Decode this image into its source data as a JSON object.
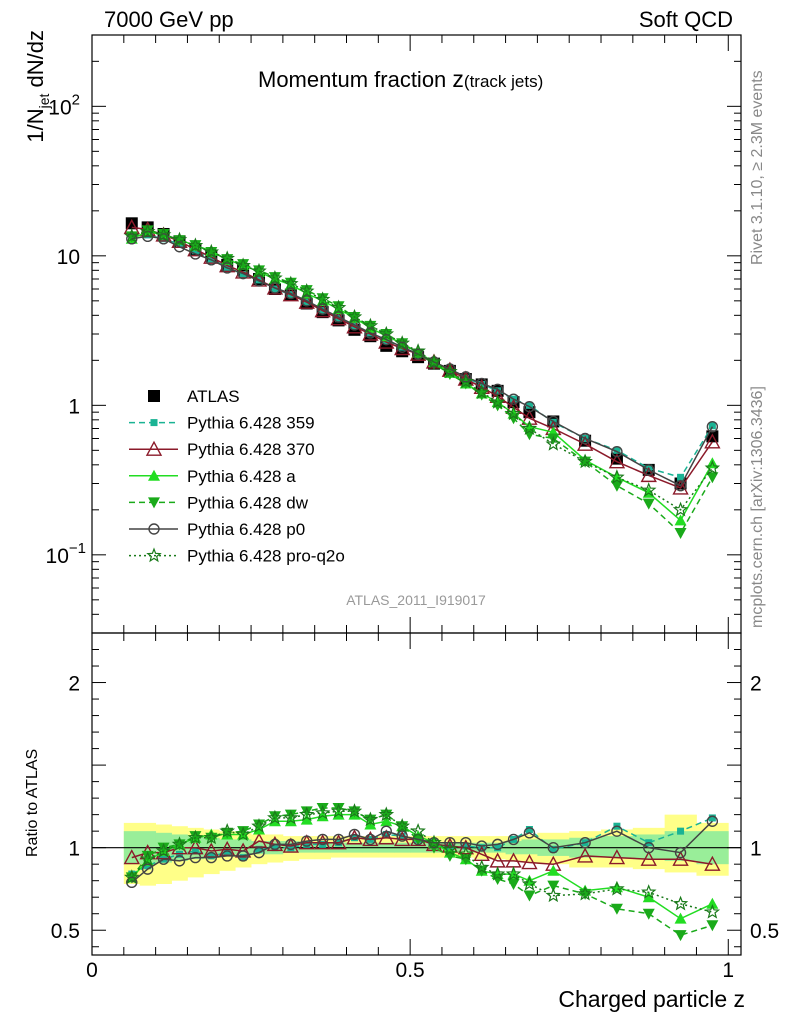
{
  "header": {
    "left_label": "7000 GeV pp",
    "right_label": "Soft QCD"
  },
  "side_labels": {
    "rivet": "Rivet 3.1.10, ≥ 2.3M events",
    "source": "mcplots.cern.ch [arXiv:1306.3436]"
  },
  "chart_data": [
    {
      "type": "line",
      "title_main": "Momentum fraction ",
      "title_var": "z",
      "title_sub": "(track jets)",
      "watermark": "ATLAS_2011_I919017",
      "ylabel_parts": [
        "1/N",
        "jet",
        " dN/dz"
      ],
      "yscale": "log",
      "xlim": [
        0,
        1.02
      ],
      "ylim": [
        0.03,
        300
      ],
      "y_ticks": [
        {
          "v": 0.1,
          "base": "10",
          "exp": "−1"
        },
        {
          "v": 1,
          "base": "1",
          "exp": ""
        },
        {
          "v": 10,
          "base": "10",
          "exp": ""
        },
        {
          "v": 100,
          "base": "10",
          "exp": "2"
        }
      ],
      "x": [
        0.0625,
        0.0875,
        0.1125,
        0.1375,
        0.1625,
        0.1875,
        0.2125,
        0.2375,
        0.2625,
        0.2875,
        0.3125,
        0.3375,
        0.3625,
        0.3875,
        0.4125,
        0.4375,
        0.4625,
        0.4875,
        0.5125,
        0.5375,
        0.5625,
        0.5875,
        0.6125,
        0.6375,
        0.6625,
        0.6875,
        0.725,
        0.775,
        0.825,
        0.875,
        0.925,
        0.975
      ],
      "legend_position": "bottom-left",
      "series": [
        {
          "name": "ATLAS",
          "color": "#000000",
          "marker": "square",
          "line": "none",
          "values": [
            16.5,
            15.5,
            14,
            12.5,
            11,
            10,
            8.7,
            8,
            7,
            6,
            5.5,
            4.8,
            4.2,
            3.7,
            3.2,
            2.9,
            2.5,
            2.3,
            2.1,
            1.9,
            1.7,
            1.5,
            1.38,
            1.25,
            1.05,
            0.9,
            0.78,
            0.58,
            0.44,
            0.37,
            0.3,
            0.62
          ]
        },
        {
          "name": "Pythia 6.428 359",
          "color": "#1ab394",
          "marker": "square-small",
          "line": "dashed",
          "values": [
            13.5,
            13.8,
            13,
            12,
            10.8,
            9.5,
            8.4,
            7.5,
            6.9,
            6,
            5.5,
            4.9,
            4.3,
            3.8,
            3.4,
            3.05,
            2.7,
            2.45,
            2.2,
            1.95,
            1.7,
            1.52,
            1.38,
            1.25,
            1.1,
            1,
            0.77,
            0.6,
            0.5,
            0.38,
            0.33,
            0.73
          ]
        },
        {
          "name": "Pythia 6.428 370",
          "color": "#8b1a2a",
          "marker": "triangle-open",
          "line": "solid",
          "values": [
            15.5,
            15,
            13.8,
            12.5,
            11,
            9.8,
            8.6,
            7.8,
            6.9,
            6.1,
            5.5,
            4.9,
            4.3,
            3.8,
            3.35,
            3,
            2.65,
            2.4,
            2.2,
            1.95,
            1.72,
            1.5,
            1.32,
            1.15,
            0.97,
            0.82,
            0.7,
            0.55,
            0.42,
            0.34,
            0.28,
            0.57
          ]
        },
        {
          "name": "Pythia 6.428 a",
          "color": "#22dd22",
          "marker": "triangle",
          "line": "solid",
          "values": [
            13,
            14.5,
            13.8,
            12.8,
            11.7,
            10.8,
            9.4,
            8.7,
            7.8,
            7,
            6.4,
            5.6,
            5,
            4.4,
            3.85,
            3.3,
            2.9,
            2.6,
            2.25,
            1.95,
            1.65,
            1.4,
            1.2,
            1.05,
            0.88,
            0.72,
            0.66,
            0.43,
            0.33,
            0.26,
            0.17,
            0.41
          ]
        },
        {
          "name": "Pythia 6.428 dw",
          "color": "#1aaa1a",
          "marker": "triangle-down",
          "line": "dashed",
          "values": [
            13.5,
            14.8,
            14,
            12.7,
            11.8,
            10.6,
            9.5,
            8.8,
            8,
            7.2,
            6.6,
            5.9,
            5.2,
            4.6,
            3.9,
            3.4,
            3,
            2.6,
            2.2,
            1.9,
            1.62,
            1.4,
            1.18,
            1.0,
            0.82,
            0.64,
            0.6,
            0.42,
            0.29,
            0.22,
            0.14,
            0.33
          ]
        },
        {
          "name": "Pythia 6.428 p0",
          "color": "#444444",
          "marker": "circle-open",
          "line": "solid",
          "values": [
            13,
            13.5,
            13,
            11.5,
            10.3,
            9.4,
            8.3,
            7.6,
            6.8,
            6.1,
            5.6,
            5,
            4.4,
            3.9,
            3.45,
            3.05,
            2.75,
            2.45,
            2.2,
            1.95,
            1.75,
            1.55,
            1.4,
            1.28,
            1.1,
            0.98,
            0.78,
            0.6,
            0.49,
            0.37,
            0.29,
            0.72
          ]
        },
        {
          "name": "Pythia 6.428 pro-q2o",
          "color": "#1a7a1a",
          "marker": "star",
          "line": "dotted",
          "values": [
            13.5,
            14.5,
            13.8,
            12.8,
            11.7,
            10.6,
            9.6,
            8.6,
            7.9,
            7.1,
            6.5,
            5.8,
            5.1,
            4.5,
            3.9,
            3.4,
            3,
            2.6,
            2.3,
            1.95,
            1.68,
            1.44,
            1.22,
            1.05,
            0.88,
            0.7,
            0.55,
            0.42,
            0.33,
            0.27,
            0.2,
            0.38
          ]
        }
      ]
    },
    {
      "type": "line",
      "ylabel": "Ratio to ATLAS",
      "xlabel": "Charged particle z",
      "xlim": [
        0,
        1.02
      ],
      "ylim": [
        0.35,
        2.3
      ],
      "y_ticks": [
        0.5,
        1,
        2
      ],
      "x_ticks": [
        {
          "v": 0,
          "label": "0"
        },
        {
          "v": 0.5,
          "label": "0.5"
        },
        {
          "v": 1,
          "label": "1"
        }
      ],
      "x": [
        0.0625,
        0.0875,
        0.1125,
        0.1375,
        0.1625,
        0.1875,
        0.2125,
        0.2375,
        0.2625,
        0.2875,
        0.3125,
        0.3375,
        0.3625,
        0.3875,
        0.4125,
        0.4375,
        0.4625,
        0.4875,
        0.5125,
        0.5375,
        0.5625,
        0.5875,
        0.6125,
        0.6375,
        0.6625,
        0.6875,
        0.725,
        0.775,
        0.825,
        0.875,
        0.925,
        0.975
      ],
      "bands": {
        "x_edges": [
          0.05,
          0.075,
          0.1,
          0.125,
          0.15,
          0.175,
          0.2,
          0.225,
          0.25,
          0.275,
          0.3,
          0.325,
          0.35,
          0.375,
          0.4,
          0.425,
          0.45,
          0.475,
          0.5,
          0.525,
          0.55,
          0.575,
          0.6,
          0.625,
          0.65,
          0.675,
          0.7,
          0.75,
          0.8,
          0.85,
          0.9,
          0.95,
          1.0
        ],
        "yellow": {
          "color": "#ffff88",
          "lo": [
            0.78,
            0.77,
            0.78,
            0.8,
            0.82,
            0.84,
            0.86,
            0.88,
            0.9,
            0.91,
            0.92,
            0.93,
            0.93,
            0.94,
            0.94,
            0.94,
            0.94,
            0.94,
            0.94,
            0.94,
            0.94,
            0.94,
            0.93,
            0.93,
            0.92,
            0.91,
            0.9,
            0.88,
            0.88,
            0.87,
            0.85,
            0.83
          ],
          "hi": [
            1.15,
            1.15,
            1.14,
            1.13,
            1.12,
            1.11,
            1.1,
            1.09,
            1.08,
            1.08,
            1.07,
            1.07,
            1.07,
            1.07,
            1.07,
            1.07,
            1.07,
            1.07,
            1.07,
            1.07,
            1.07,
            1.07,
            1.07,
            1.07,
            1.07,
            1.08,
            1.09,
            1.1,
            1.11,
            1.12,
            1.2,
            1.15
          ]
        },
        "green": {
          "color": "#99ee99",
          "lo": [
            0.9,
            0.9,
            0.91,
            0.92,
            0.93,
            0.94,
            0.95,
            0.96,
            0.96,
            0.96,
            0.97,
            0.97,
            0.97,
            0.97,
            0.97,
            0.97,
            0.97,
            0.97,
            0.97,
            0.97,
            0.97,
            0.97,
            0.97,
            0.97,
            0.96,
            0.96,
            0.95,
            0.94,
            0.94,
            0.93,
            0.92,
            0.9
          ],
          "hi": [
            1.1,
            1.1,
            1.09,
            1.08,
            1.07,
            1.06,
            1.05,
            1.05,
            1.04,
            1.04,
            1.04,
            1.03,
            1.03,
            1.03,
            1.03,
            1.03,
            1.03,
            1.03,
            1.03,
            1.03,
            1.03,
            1.03,
            1.03,
            1.03,
            1.04,
            1.05,
            1.05,
            1.06,
            1.07,
            1.08,
            1.1,
            1.1
          ]
        }
      },
      "series": [
        {
          "name": "Pythia 6.428 359",
          "color": "#1ab394",
          "marker": "square-small",
          "line": "dashed",
          "values": [
            0.84,
            0.89,
            0.93,
            0.96,
            0.98,
            0.95,
            0.97,
            0.94,
            0.99,
            1.0,
            1.0,
            1.02,
            1.02,
            1.03,
            1.06,
            1.05,
            1.08,
            1.07,
            1.05,
            1.03,
            1.0,
            1.01,
            1.0,
            1.0,
            1.05,
            1.11,
            0.99,
            1.03,
            1.13,
            1.03,
            1.1,
            1.18
          ]
        },
        {
          "name": "Pythia 6.428 370",
          "color": "#8b1a2a",
          "marker": "triangle-open",
          "line": "solid",
          "values": [
            0.94,
            0.97,
            0.97,
            1.0,
            1.0,
            0.98,
            0.99,
            0.98,
            1.04,
            1.02,
            1.01,
            1.03,
            1.03,
            1.03,
            1.06,
            1.05,
            1.06,
            1.05,
            1.05,
            1.02,
            1.01,
            1.0,
            0.96,
            0.92,
            0.92,
            0.91,
            0.9,
            0.95,
            0.94,
            0.93,
            0.93,
            0.9
          ]
        },
        {
          "name": "Pythia 6.428 a",
          "color": "#22dd22",
          "marker": "triangle",
          "line": "solid",
          "values": [
            0.82,
            0.92,
            0.98,
            1.02,
            1.06,
            1.08,
            1.08,
            1.08,
            1.11,
            1.16,
            1.16,
            1.17,
            1.19,
            1.2,
            1.2,
            1.14,
            1.16,
            1.13,
            1.07,
            1.03,
            0.97,
            0.93,
            0.86,
            0.84,
            0.84,
            0.8,
            0.86,
            0.74,
            0.76,
            0.7,
            0.57,
            0.66
          ]
        },
        {
          "name": "Pythia 6.428 dw",
          "color": "#1aaa1a",
          "marker": "triangle-down",
          "line": "dashed",
          "values": [
            0.82,
            0.95,
            1.0,
            1.02,
            1.07,
            1.06,
            1.09,
            1.1,
            1.14,
            1.19,
            1.2,
            1.22,
            1.24,
            1.24,
            1.22,
            1.17,
            1.2,
            1.13,
            1.05,
            1.0,
            0.95,
            0.93,
            0.86,
            0.81,
            0.78,
            0.71,
            0.77,
            0.72,
            0.63,
            0.6,
            0.47,
            0.53
          ]
        },
        {
          "name": "Pythia 6.428 p0",
          "color": "#444444",
          "marker": "circle-open",
          "line": "solid",
          "values": [
            0.79,
            0.87,
            0.93,
            0.92,
            0.94,
            0.94,
            0.95,
            0.95,
            0.97,
            1.02,
            1.02,
            1.04,
            1.05,
            1.05,
            1.08,
            1.05,
            1.1,
            1.07,
            1.05,
            1.03,
            1.03,
            1.03,
            1.01,
            1.02,
            1.05,
            1.09,
            1.0,
            1.03,
            1.1,
            1.0,
            0.97,
            1.16
          ]
        },
        {
          "name": "Pythia 6.428 pro-q2o",
          "color": "#1a7a1a",
          "marker": "star",
          "line": "dotted",
          "values": [
            0.82,
            0.93,
            0.98,
            1.02,
            1.06,
            1.06,
            1.1,
            1.08,
            1.13,
            1.18,
            1.18,
            1.2,
            1.21,
            1.22,
            1.22,
            1.17,
            1.2,
            1.13,
            1.1,
            1.03,
            0.99,
            0.96,
            0.88,
            0.84,
            0.84,
            0.78,
            0.71,
            0.72,
            0.75,
            0.73,
            0.66,
            0.61
          ]
        }
      ]
    }
  ]
}
